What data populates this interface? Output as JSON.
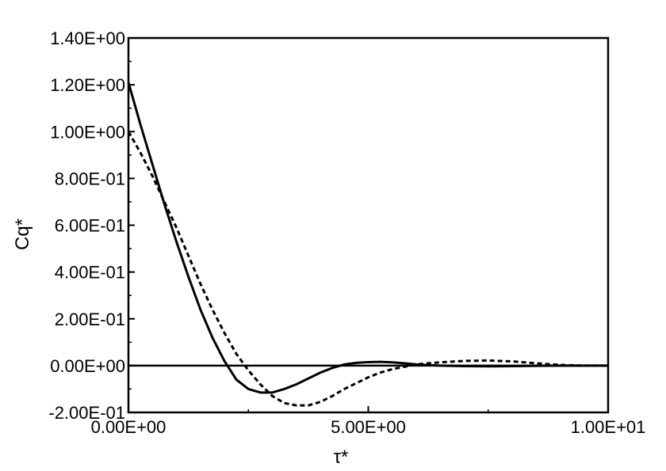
{
  "chart_data": {
    "type": "line",
    "title": "",
    "xlabel": "τ*",
    "ylabel": "Cq*",
    "xlim": [
      0,
      10
    ],
    "ylim": [
      -0.2,
      1.4
    ],
    "x_ticks": [
      {
        "value": 0,
        "label": "0.00E+00"
      },
      {
        "value": 5,
        "label": "5.00E+00"
      },
      {
        "value": 10,
        "label": "1.00E+01"
      }
    ],
    "y_ticks": [
      {
        "value": 1.4,
        "label": "1.40E+00"
      },
      {
        "value": 1.2,
        "label": "1.20E+00"
      },
      {
        "value": 1.0,
        "label": "1.00E+00"
      },
      {
        "value": 0.8,
        "label": "8.00E-01"
      },
      {
        "value": 0.6,
        "label": "6.00E-01"
      },
      {
        "value": 0.4,
        "label": "4.00E-01"
      },
      {
        "value": 0.2,
        "label": "2.00E-01"
      },
      {
        "value": 0.0,
        "label": "0.00E+00"
      },
      {
        "value": -0.2,
        "label": "-2.00E-01"
      }
    ],
    "x_minor_ticks": [
      2.5,
      7.5
    ],
    "y_minor_ticks": [
      1.3,
      1.1,
      0.9,
      0.7,
      0.5,
      0.3,
      0.1,
      -0.1
    ],
    "zero_line": true,
    "grid": false,
    "series": [
      {
        "style": "solid",
        "color": "#000000",
        "x": [
          0,
          0.25,
          0.5,
          0.75,
          1.0,
          1.25,
          1.5,
          1.75,
          2.0,
          2.25,
          2.5,
          2.75,
          3.0,
          3.25,
          3.5,
          3.75,
          4.0,
          4.25,
          4.5,
          4.75,
          5.0,
          5.25,
          5.5,
          5.75,
          6.0,
          6.25,
          6.5,
          7.0,
          7.5,
          8.0,
          8.5,
          9.0,
          9.5,
          10.0
        ],
        "y": [
          1.21,
          1.03,
          0.86,
          0.69,
          0.53,
          0.38,
          0.24,
          0.12,
          0.02,
          -0.06,
          -0.1,
          -0.115,
          -0.115,
          -0.1,
          -0.08,
          -0.055,
          -0.03,
          -0.01,
          0.005,
          0.012,
          0.015,
          0.016,
          0.014,
          0.01,
          0.005,
          0.002,
          0.0,
          -0.002,
          -0.003,
          -0.002,
          -0.001,
          0.0,
          0.0,
          0.0
        ]
      },
      {
        "style": "dashed",
        "color": "#000000",
        "x": [
          0,
          0.25,
          0.5,
          0.75,
          1.0,
          1.25,
          1.5,
          1.75,
          2.0,
          2.25,
          2.5,
          2.75,
          3.0,
          3.25,
          3.5,
          3.75,
          4.0,
          4.25,
          4.5,
          4.75,
          5.0,
          5.25,
          5.5,
          5.75,
          6.0,
          6.25,
          6.5,
          7.0,
          7.5,
          8.0,
          8.5,
          9.0,
          9.5,
          10.0
        ],
        "y": [
          1.0,
          0.91,
          0.81,
          0.7,
          0.59,
          0.47,
          0.35,
          0.24,
          0.14,
          0.05,
          -0.02,
          -0.08,
          -0.13,
          -0.16,
          -0.17,
          -0.17,
          -0.155,
          -0.13,
          -0.1,
          -0.075,
          -0.05,
          -0.03,
          -0.015,
          -0.005,
          0.005,
          0.01,
          0.014,
          0.02,
          0.022,
          0.018,
          0.01,
          0.003,
          0.0,
          0.0
        ]
      }
    ]
  }
}
